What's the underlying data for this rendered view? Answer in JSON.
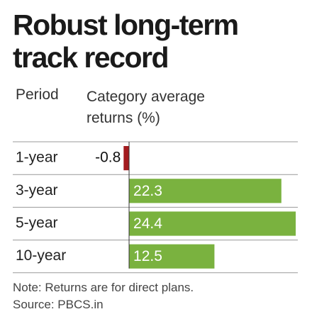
{
  "chart_data": {
    "type": "bar",
    "orientation": "horizontal",
    "title": "Robust long-term track record",
    "category_header": "Period",
    "value_header": "Category average returns (%)",
    "categories": [
      "1-year",
      "3-year",
      "5-year",
      "10-year"
    ],
    "values": [
      -0.8,
      22.3,
      24.4,
      12.5
    ],
    "color": "#7ab23f",
    "negative_color": "#a31b1f",
    "xlim": [
      -1,
      25
    ],
    "note": "Note: Returns are for direct plans.",
    "source": "Source: PBCS.in"
  }
}
